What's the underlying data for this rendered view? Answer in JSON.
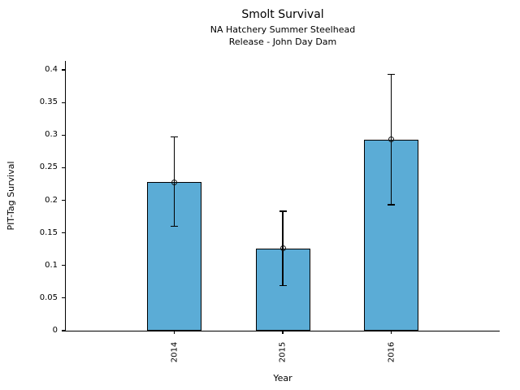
{
  "figure": {
    "background": "#ffffff"
  },
  "chart_data": {
    "type": "bar",
    "title": "Smolt Survival",
    "subtitle": [
      "NA Hatchery Summer Steelhead",
      "Release - John Day Dam"
    ],
    "xlabel": "Year",
    "ylabel": "PIT-Tag Survival",
    "categories": [
      "2014",
      "2015",
      "2016"
    ],
    "values": [
      0.228,
      0.126,
      0.293
    ],
    "error_low": [
      0.16,
      0.069,
      0.193
    ],
    "error_high": [
      0.297,
      0.183,
      0.393
    ],
    "ylim": [
      0,
      0.4137
    ],
    "yticks": [
      0,
      0.05,
      0.1,
      0.15,
      0.2,
      0.25,
      0.3,
      0.35,
      0.4
    ],
    "ytick_labels": [
      "0",
      "0.05",
      "0.1",
      "0.15",
      "0.2",
      "0.25",
      "0.3",
      "0.35",
      "0.4"
    ],
    "xtick_rotation_deg": 90,
    "grid": false,
    "legend": "none",
    "bar_color": "#5BACD6",
    "bar_edge_color": "#000000",
    "error_color": "#000000",
    "marker": "open-circle"
  }
}
